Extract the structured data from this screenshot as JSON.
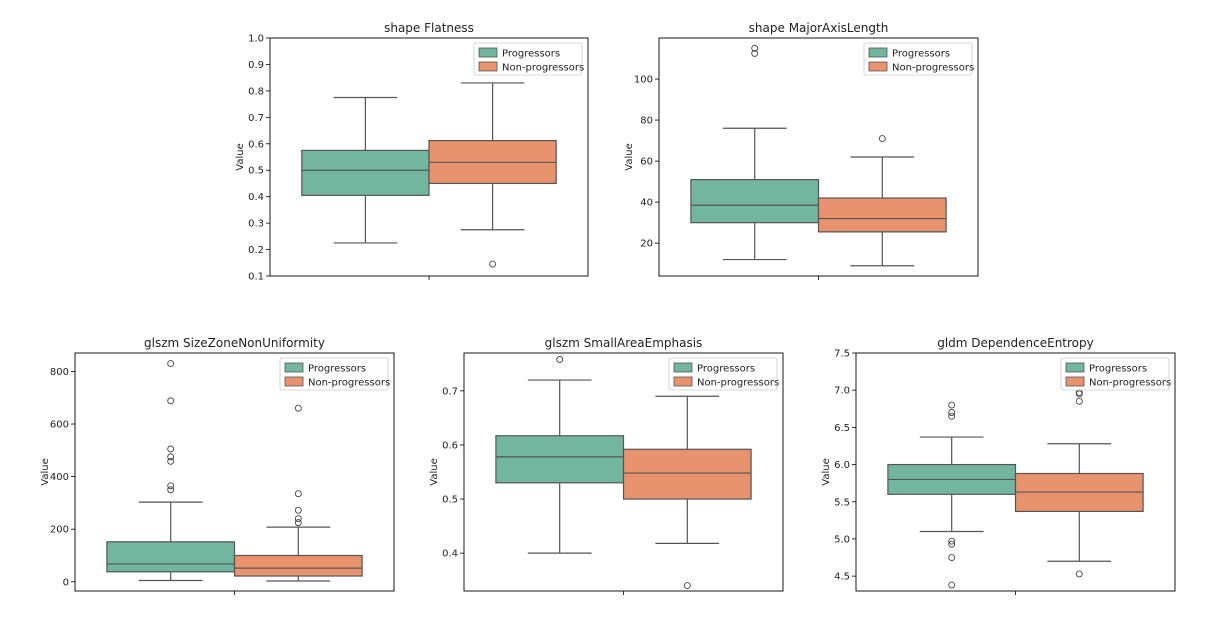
{
  "colors": {
    "progressors": "#72b6a0",
    "non_progressors": "#e8936e",
    "whisker": "#555555",
    "frame": "#000000"
  },
  "chart_data": [
    {
      "type": "box",
      "title": "shape Flatness",
      "ylabel": "Value",
      "xlabel": "",
      "ylim": [
        0.1,
        1.0
      ],
      "yticks": [
        0.1,
        0.2,
        0.3,
        0.4,
        0.5,
        0.6,
        0.7,
        0.8,
        0.9,
        1.0
      ],
      "ytick_labels": [
        "0.1",
        "0.2",
        "0.3",
        "0.4",
        "0.5",
        "0.6",
        "0.7",
        "0.8",
        "0.9",
        "1.0"
      ],
      "legend_position": "top-right",
      "grid": false,
      "series": [
        {
          "name": "Progressors",
          "whisker_low": 0.225,
          "q1": 0.405,
          "median": 0.5,
          "q3": 0.575,
          "whisker_high": 0.775,
          "outliers": []
        },
        {
          "name": "Non-progressors",
          "whisker_low": 0.275,
          "q1": 0.45,
          "median": 0.53,
          "q3": 0.612,
          "whisker_high": 0.83,
          "outliers": [
            0.145
          ]
        }
      ]
    },
    {
      "type": "box",
      "title": "shape MajorAxisLength",
      "ylabel": "Value",
      "xlabel": "",
      "ylim": [
        4,
        120
      ],
      "yticks": [
        20,
        40,
        60,
        80,
        100
      ],
      "ytick_labels": [
        "20",
        "40",
        "60",
        "80",
        "100"
      ],
      "legend_position": "top-right",
      "grid": false,
      "series": [
        {
          "name": "Progressors",
          "whisker_low": 12,
          "q1": 30,
          "median": 38.5,
          "q3": 51,
          "whisker_high": 76,
          "outliers": [
            112.5,
            115
          ]
        },
        {
          "name": "Non-progressors",
          "whisker_low": 9,
          "q1": 25.5,
          "median": 32,
          "q3": 42,
          "whisker_high": 62,
          "outliers": [
            71
          ]
        }
      ]
    },
    {
      "type": "box",
      "title": "glszm SizeZoneNonUniformity",
      "ylabel": "Value",
      "xlabel": "",
      "ylim": [
        -35,
        870
      ],
      "yticks": [
        0,
        200,
        400,
        600,
        800
      ],
      "ytick_labels": [
        "0",
        "200",
        "400",
        "600",
        "800"
      ],
      "legend_position": "top-right",
      "grid": false,
      "series": [
        {
          "name": "Progressors",
          "whisker_low": 5,
          "q1": 38,
          "median": 68,
          "q3": 152,
          "whisker_high": 303,
          "outliers": [
            350,
            365,
            458,
            475,
            505,
            688,
            830
          ]
        },
        {
          "name": "Non-progressors",
          "whisker_low": 3,
          "q1": 22,
          "median": 52,
          "q3": 100,
          "whisker_high": 208,
          "outliers": [
            225,
            240,
            272,
            335,
            660
          ]
        }
      ]
    },
    {
      "type": "box",
      "title": "glszm SmallAreaEmphasis",
      "ylabel": "Value",
      "xlabel": "",
      "ylim": [
        0.33,
        0.77
      ],
      "yticks": [
        0.4,
        0.5,
        0.6,
        0.7
      ],
      "ytick_labels": [
        "0.4",
        "0.5",
        "0.6",
        "0.7"
      ],
      "legend_position": "top-right",
      "grid": false,
      "series": [
        {
          "name": "Progressors",
          "whisker_low": 0.4,
          "q1": 0.53,
          "median": 0.578,
          "q3": 0.617,
          "whisker_high": 0.72,
          "outliers": [
            0.758
          ]
        },
        {
          "name": "Non-progressors",
          "whisker_low": 0.418,
          "q1": 0.5,
          "median": 0.548,
          "q3": 0.592,
          "whisker_high": 0.69,
          "outliers": [
            0.34
          ]
        }
      ]
    },
    {
      "type": "box",
      "title": "gldm DependenceEntropy",
      "ylabel": "Value",
      "xlabel": "",
      "ylim": [
        4.3,
        7.5
      ],
      "yticks": [
        4.5,
        5.0,
        5.5,
        6.0,
        6.5,
        7.0,
        7.5
      ],
      "ytick_labels": [
        "4.5",
        "5.0",
        "5.5",
        "6.0",
        "6.5",
        "7.0",
        "7.5"
      ],
      "legend_position": "top-right",
      "grid": false,
      "series": [
        {
          "name": "Progressors",
          "whisker_low": 5.1,
          "q1": 5.6,
          "median": 5.8,
          "q3": 6.0,
          "whisker_high": 6.37,
          "outliers": [
            4.38,
            4.75,
            4.93,
            4.97,
            6.65,
            6.7,
            6.8
          ]
        },
        {
          "name": "Non-progressors",
          "whisker_low": 4.7,
          "q1": 5.37,
          "median": 5.63,
          "q3": 5.88,
          "whisker_high": 6.28,
          "outliers": [
            4.53,
            6.85,
            6.95,
            6.97
          ]
        }
      ]
    }
  ]
}
